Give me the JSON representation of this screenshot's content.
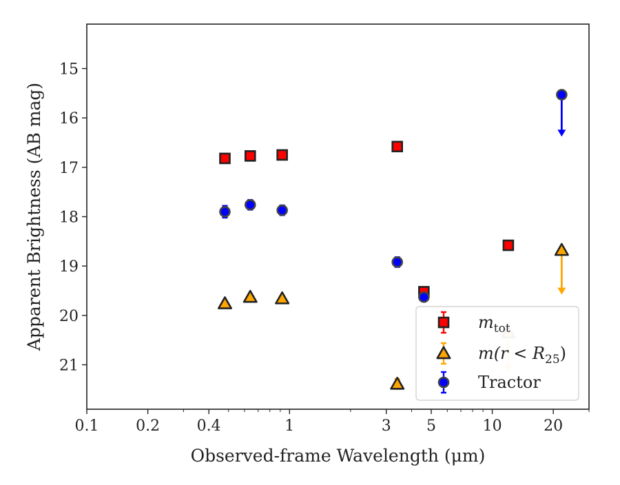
{
  "chart_data": {
    "type": "scatter",
    "title": "",
    "xlabel": "Observed-frame Wavelength (μm)",
    "ylabel": "Apparent Brightness (AB mag)",
    "xscale": "log",
    "xlim": [
      0.1,
      30
    ],
    "ylim": [
      21.9,
      14.1
    ],
    "y_inverted": true,
    "x_ticks": [
      0.1,
      0.2,
      0.4,
      1,
      3,
      5,
      10,
      20
    ],
    "x_tick_labels": [
      "0.1",
      "0.2",
      "0.4",
      "1",
      "3",
      "5",
      "10",
      "20"
    ],
    "y_ticks": [
      15,
      16,
      17,
      18,
      19,
      20,
      21
    ],
    "y_tick_labels": [
      "15",
      "16",
      "17",
      "18",
      "19",
      "20",
      "21"
    ],
    "grid": false,
    "legend_position": "bottom-right",
    "series": [
      {
        "name": "m_tot",
        "marker": "square",
        "color": "#ff0000",
        "edge_color": "#222222",
        "error_color": "#ff0000",
        "points": [
          {
            "x": 0.48,
            "y": 16.82,
            "err": 0.06
          },
          {
            "x": 0.64,
            "y": 16.77,
            "err": 0.06
          },
          {
            "x": 0.92,
            "y": 16.75,
            "err": 0.06
          },
          {
            "x": 3.4,
            "y": 16.58,
            "err": 0.06
          },
          {
            "x": 4.6,
            "y": 19.52,
            "err": 0.08
          },
          {
            "x": 12.0,
            "y": 18.58,
            "err": 0.06
          }
        ]
      },
      {
        "name": "m(r < R25)",
        "marker": "triangle",
        "color": "#ffa500",
        "edge_color": "#222222",
        "error_color": "#ffa500",
        "points": [
          {
            "x": 0.48,
            "y": 19.76,
            "err": 0.05
          },
          {
            "x": 0.64,
            "y": 19.63,
            "err": 0.05
          },
          {
            "x": 0.92,
            "y": 19.66,
            "err": 0.05
          },
          {
            "x": 3.4,
            "y": 21.39,
            "err": 0.1
          },
          {
            "x": 12.0,
            "y": 20.35,
            "upper_limit_to": 21.12,
            "faded": true
          },
          {
            "x": 22.0,
            "y": 18.68,
            "upper_limit_to": 19.55
          }
        ]
      },
      {
        "name": "Tractor",
        "marker": "circle",
        "color": "#0000ff",
        "edge_color": "#444444",
        "error_color": "#0000ff",
        "points": [
          {
            "x": 0.48,
            "y": 17.9,
            "err": 0.12
          },
          {
            "x": 0.64,
            "y": 17.76,
            "err": 0.1
          },
          {
            "x": 0.92,
            "y": 17.87,
            "err": 0.1
          },
          {
            "x": 3.4,
            "y": 18.92,
            "err": 0.1
          },
          {
            "x": 4.6,
            "y": 19.63,
            "err": 0.08
          },
          {
            "x": 22.0,
            "y": 15.53,
            "upper_limit_to": 16.35
          }
        ]
      }
    ],
    "legend": [
      {
        "label_main": "m",
        "label_sub": "tot",
        "series": 0
      },
      {
        "label_main": "m(r < R",
        "label_sub": "25",
        "label_tail": ")",
        "series": 1
      },
      {
        "label_main": "Tractor",
        "series": 2
      }
    ]
  }
}
